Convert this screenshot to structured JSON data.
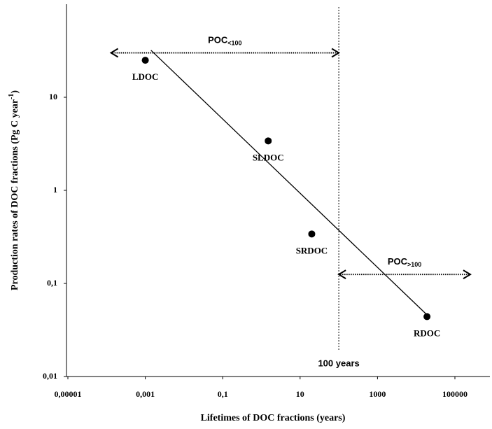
{
  "chart_data": {
    "type": "scatter",
    "x_label": "Lifetimes of DOC fractions (years)",
    "y_label": {
      "text": "Production rates of DOC fractions (Pg C year",
      "sup": "-1",
      "after": ")"
    },
    "log_x": true,
    "log_y": true,
    "xlim": [
      1e-05,
      500000
    ],
    "ylim": [
      0.01,
      100
    ],
    "xticks": [
      {
        "value": 1e-05,
        "label": "0,00001"
      },
      {
        "value": 0.001,
        "label": "0,001"
      },
      {
        "value": 0.1,
        "label": "0,1"
      },
      10,
      1000,
      100000
    ],
    "yticks": [
      {
        "value": 0.01,
        "label": "0,01"
      },
      {
        "value": 0.1,
        "label": "0,1"
      },
      1,
      10
    ],
    "points": {
      "labels": [
        "LDOC",
        "SLDOC",
        "SRDOC",
        "RDOC"
      ],
      "x": [
        0.001,
        1.5,
        20,
        19000
      ],
      "y": [
        25,
        3.4,
        0.34,
        0.044
      ],
      "color": "#000000"
    },
    "trend_line": {
      "x": [
        0.0014,
        19000
      ],
      "y": [
        32,
        0.046
      ],
      "color": "#000000"
    },
    "vline": {
      "x": 100,
      "label": "100 years"
    },
    "annotations": [
      {
        "text": "POC",
        "sub": "<100",
        "x": [
          0.00013,
          100
        ],
        "y": 30
      },
      {
        "text": "POC",
        "sub": ">100",
        "x": [
          100,
          250000
        ],
        "y": 0.125
      }
    ]
  }
}
